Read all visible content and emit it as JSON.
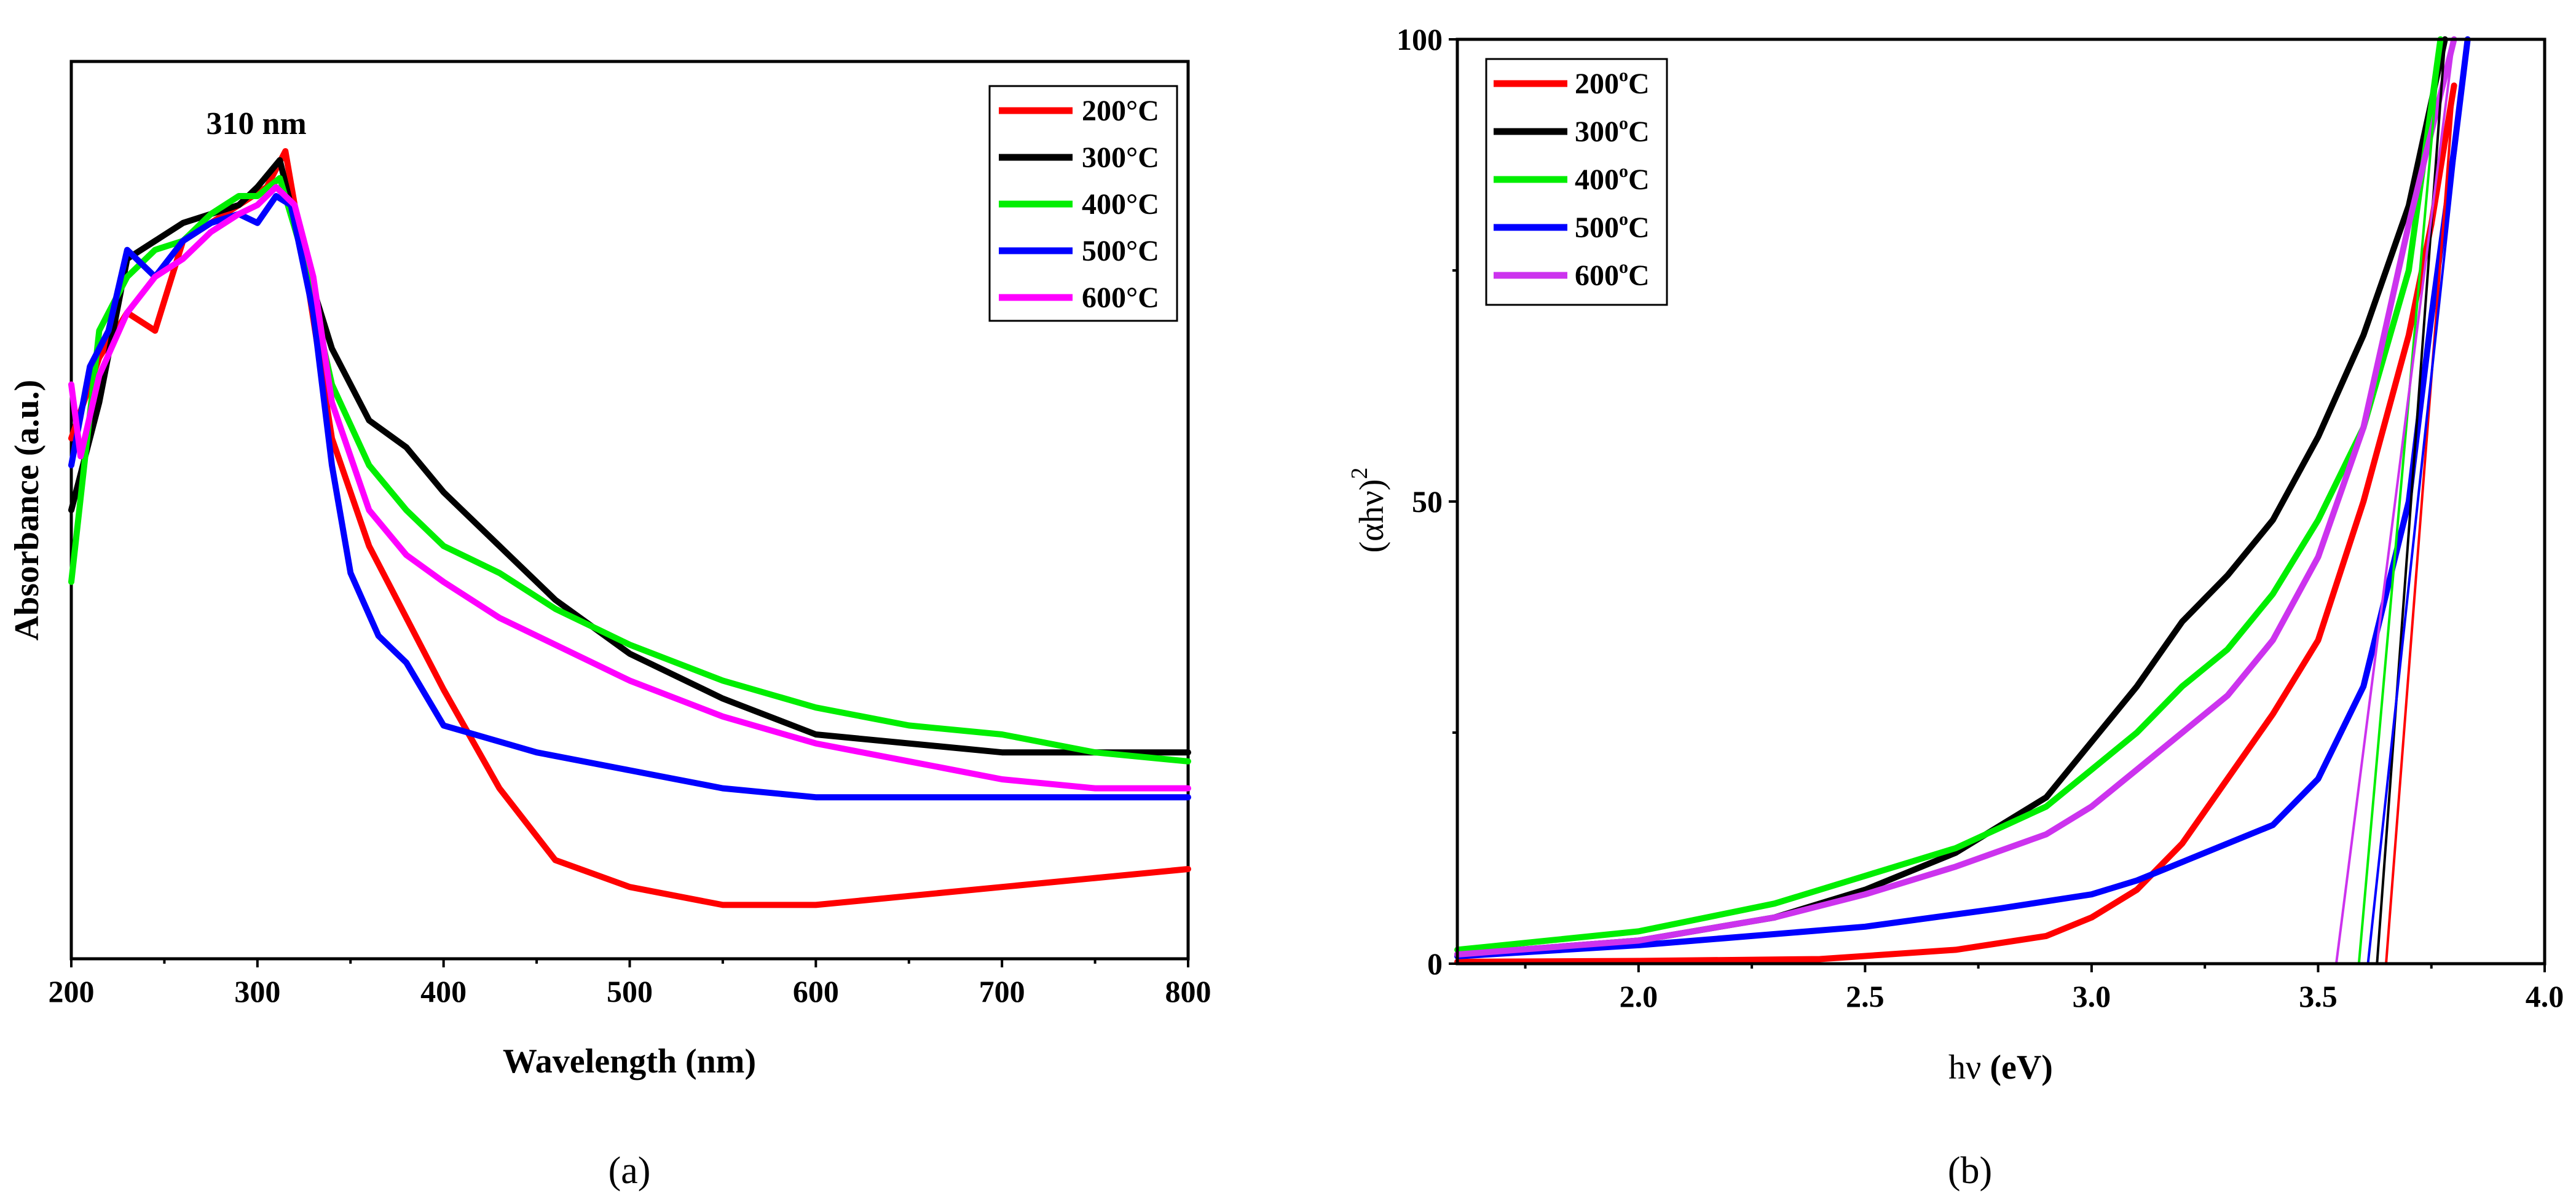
{
  "chart_data": [
    {
      "panel": "a",
      "type": "line",
      "caption": "(a)",
      "xlabel": "Wavelength (nm)",
      "ylabel": "Absorbance (a.u.)",
      "xlim": [
        200,
        800
      ],
      "ylim": [
        0,
        1
      ],
      "xticks": [
        200,
        300,
        400,
        500,
        600,
        700,
        800
      ],
      "yticks_shown": false,
      "legend_position": "top-right",
      "annotation": {
        "text": "310 nm",
        "x": 310
      },
      "series": [
        {
          "name": "200°C",
          "color": "#ff0000",
          "x": [
            200,
            215,
            230,
            245,
            260,
            275,
            290,
            305,
            315,
            325,
            340,
            360,
            380,
            400,
            430,
            460,
            500,
            550,
            600,
            650,
            700,
            750,
            800
          ],
          "y": [
            0.58,
            0.67,
            0.72,
            0.7,
            0.8,
            0.82,
            0.84,
            0.86,
            0.9,
            0.78,
            0.58,
            0.46,
            0.38,
            0.3,
            0.19,
            0.11,
            0.08,
            0.06,
            0.06,
            0.07,
            0.08,
            0.09,
            0.1
          ]
        },
        {
          "name": "300°C",
          "color": "#000000",
          "x": [
            200,
            215,
            230,
            245,
            260,
            275,
            290,
            300,
            312,
            325,
            340,
            360,
            380,
            400,
            430,
            460,
            500,
            550,
            600,
            650,
            700,
            750,
            800
          ],
          "y": [
            0.5,
            0.62,
            0.78,
            0.8,
            0.82,
            0.83,
            0.84,
            0.86,
            0.89,
            0.78,
            0.68,
            0.6,
            0.57,
            0.52,
            0.46,
            0.4,
            0.34,
            0.29,
            0.25,
            0.24,
            0.23,
            0.23,
            0.23
          ]
        },
        {
          "name": "400°C",
          "color": "#00ee00",
          "x": [
            200,
            215,
            230,
            245,
            260,
            275,
            290,
            300,
            312,
            325,
            340,
            360,
            380,
            400,
            430,
            460,
            500,
            550,
            600,
            650,
            700,
            750,
            800
          ],
          "y": [
            0.42,
            0.7,
            0.76,
            0.79,
            0.8,
            0.83,
            0.85,
            0.85,
            0.87,
            0.78,
            0.64,
            0.55,
            0.5,
            0.46,
            0.43,
            0.39,
            0.35,
            0.31,
            0.28,
            0.26,
            0.25,
            0.23,
            0.22
          ]
        },
        {
          "name": "500°C",
          "color": "#0000ff",
          "x": [
            200,
            210,
            220,
            230,
            245,
            260,
            275,
            290,
            300,
            310,
            318,
            330,
            340,
            350,
            365,
            380,
            400,
            450,
            500,
            550,
            600,
            650,
            700,
            750,
            800
          ],
          "y": [
            0.55,
            0.66,
            0.7,
            0.79,
            0.76,
            0.8,
            0.82,
            0.83,
            0.82,
            0.85,
            0.84,
            0.72,
            0.55,
            0.43,
            0.36,
            0.33,
            0.26,
            0.23,
            0.21,
            0.19,
            0.18,
            0.18,
            0.18,
            0.18,
            0.18
          ]
        },
        {
          "name": "600°C",
          "color": "#ff00ff",
          "x": [
            200,
            205,
            215,
            230,
            245,
            260,
            275,
            290,
            300,
            310,
            320,
            330,
            340,
            360,
            380,
            400,
            430,
            460,
            500,
            550,
            600,
            650,
            700,
            750,
            800
          ],
          "y": [
            0.64,
            0.56,
            0.65,
            0.72,
            0.76,
            0.78,
            0.81,
            0.83,
            0.84,
            0.86,
            0.84,
            0.76,
            0.62,
            0.5,
            0.45,
            0.42,
            0.38,
            0.35,
            0.31,
            0.27,
            0.24,
            0.22,
            0.2,
            0.19,
            0.19
          ]
        }
      ]
    },
    {
      "panel": "b",
      "type": "line",
      "caption": "(b)",
      "xlabel": "hν (eV)",
      "ylabel": "(αhν)²",
      "ylabel_base": "(αhν)",
      "ylabel_sup": "2",
      "xlim": [
        1.6,
        4.0
      ],
      "ylim": [
        0,
        100
      ],
      "xticks": [
        2.0,
        2.5,
        3.0,
        3.5,
        4.0
      ],
      "xtick_labels": [
        "2.0",
        "2.5",
        "3.0",
        "3.5",
        "4.0"
      ],
      "yticks": [
        0,
        50,
        100
      ],
      "ytick_labels": [
        "0",
        "50",
        "100"
      ],
      "legend_position": "top-left",
      "series": [
        {
          "name": "200°C",
          "legend_label": "200",
          "legend_sup": "o",
          "legend_unit": "C",
          "color": "#ff0000",
          "band_gap_eV": 3.65,
          "x": [
            1.6,
            2.0,
            2.4,
            2.7,
            2.9,
            3.0,
            3.1,
            3.2,
            3.3,
            3.4,
            3.5,
            3.6,
            3.7,
            3.75,
            3.8
          ],
          "y": [
            0.2,
            0.3,
            0.5,
            1.5,
            3,
            5,
            8,
            13,
            20,
            27,
            35,
            50,
            68,
            80,
            95
          ]
        },
        {
          "name": "300°C",
          "legend_label": "300",
          "legend_sup": "o",
          "legend_unit": "C",
          "color": "#000000",
          "band_gap_eV": 3.63,
          "x": [
            1.6,
            2.0,
            2.3,
            2.5,
            2.7,
            2.9,
            3.0,
            3.1,
            3.2,
            3.3,
            3.4,
            3.5,
            3.6,
            3.7,
            3.78
          ],
          "y": [
            1,
            2.5,
            5,
            8,
            12,
            18,
            24,
            30,
            37,
            42,
            48,
            57,
            68,
            82,
            100
          ]
        },
        {
          "name": "400°C",
          "legend_label": "400",
          "legend_sup": "o",
          "legend_unit": "C",
          "color": "#00ee00",
          "band_gap_eV": 3.59,
          "x": [
            1.6,
            2.0,
            2.3,
            2.5,
            2.7,
            2.9,
            3.0,
            3.1,
            3.2,
            3.3,
            3.4,
            3.5,
            3.6,
            3.7,
            3.77
          ],
          "y": [
            1.5,
            3.5,
            6.5,
            9.5,
            12.5,
            17,
            21,
            25,
            30,
            34,
            40,
            48,
            58,
            75,
            100
          ]
        },
        {
          "name": "500°C",
          "legend_label": "500",
          "legend_sup": "o",
          "legend_unit": "C",
          "color": "#0000ff",
          "band_gap_eV": 3.61,
          "x": [
            1.6,
            2.0,
            2.5,
            2.8,
            3.0,
            3.1,
            3.2,
            3.3,
            3.4,
            3.5,
            3.6,
            3.7,
            3.75,
            3.8,
            3.83
          ],
          "y": [
            0.8,
            2,
            4,
            6,
            7.5,
            9,
            11,
            13,
            15,
            20,
            30,
            50,
            70,
            88,
            100
          ]
        },
        {
          "name": "600°C",
          "legend_label": "600",
          "legend_sup": "o",
          "legend_unit": "C",
          "color": "#cc33ee",
          "band_gap_eV": 3.54,
          "x": [
            1.6,
            2.0,
            2.3,
            2.5,
            2.7,
            2.9,
            3.0,
            3.1,
            3.2,
            3.3,
            3.4,
            3.5,
            3.6,
            3.7,
            3.8
          ],
          "y": [
            1,
            2.5,
            5,
            7.5,
            10.5,
            14,
            17,
            21,
            25,
            29,
            35,
            44,
            58,
            80,
            100
          ]
        }
      ]
    }
  ]
}
